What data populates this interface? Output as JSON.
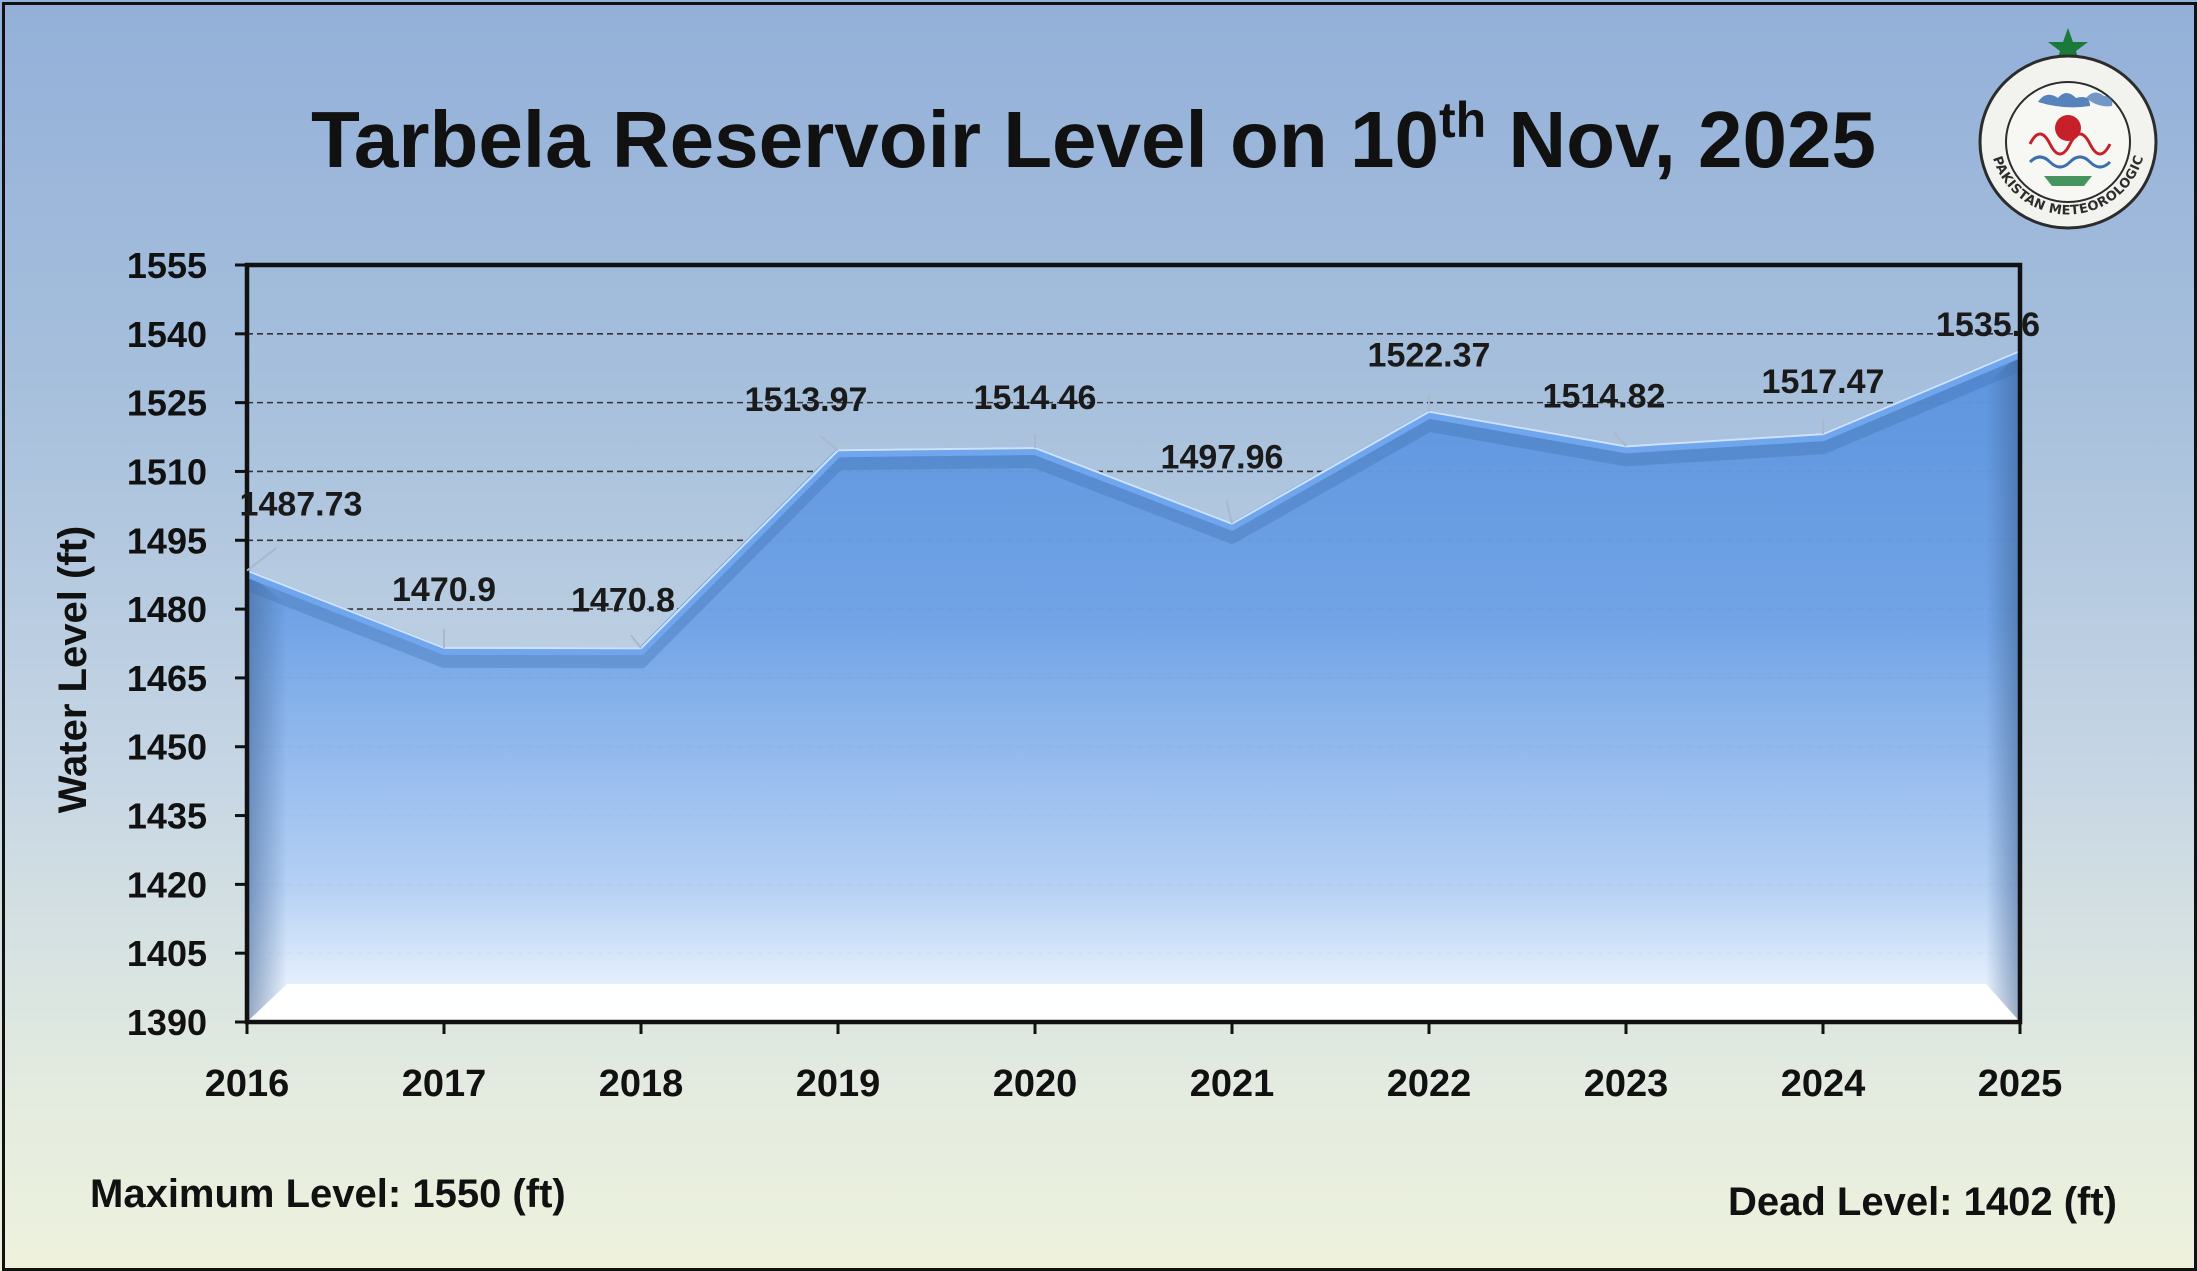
{
  "title": {
    "prefix": "Tarbela Reservoir Level on 10",
    "sup": "th",
    "suffix": " Nov, 2025"
  },
  "notes": {
    "max_level": "Maximum Level: 1550 (ft)",
    "dead_level": "Dead Level: 1402 (ft)"
  },
  "logo": {
    "ring_text": "PAKISTAN METEOROLOGICAL DEPARTMENT",
    "colors": {
      "star": "#1a7a3a",
      "ring": "#2c2c2c",
      "accent": "#c8202a",
      "cloud": "#3a6fb0"
    }
  },
  "colors": {
    "area_top": "#5c96e0",
    "area_bottom": "#ffffff",
    "line": "#6fa6ee",
    "grid": "#333333",
    "axis": "#111111"
  },
  "chart_data": {
    "type": "area",
    "title": "Tarbela Reservoir Level on 10th Nov, 2025",
    "xlabel": "",
    "ylabel": "Water Level (ft)",
    "categories": [
      "2016",
      "2017",
      "2018",
      "2019",
      "2020",
      "2021",
      "2022",
      "2023",
      "2024",
      "2025"
    ],
    "values": [
      1487.73,
      1470.9,
      1470.8,
      1513.97,
      1514.46,
      1497.96,
      1522.37,
      1514.82,
      1517.47,
      1535.6
    ],
    "data_labels": [
      "1487.73",
      "1470.9",
      "1470.8",
      "1513.97",
      "1514.46",
      "1497.96",
      "1522.37",
      "1514.82",
      "1517.47",
      "1535.6"
    ],
    "ylim": [
      1390,
      1555
    ],
    "yticks": [
      "1390",
      "1405",
      "1420",
      "1435",
      "1450",
      "1465",
      "1480",
      "1495",
      "1510",
      "1525",
      "1540",
      "1555"
    ],
    "grid": true,
    "legend": "none"
  }
}
